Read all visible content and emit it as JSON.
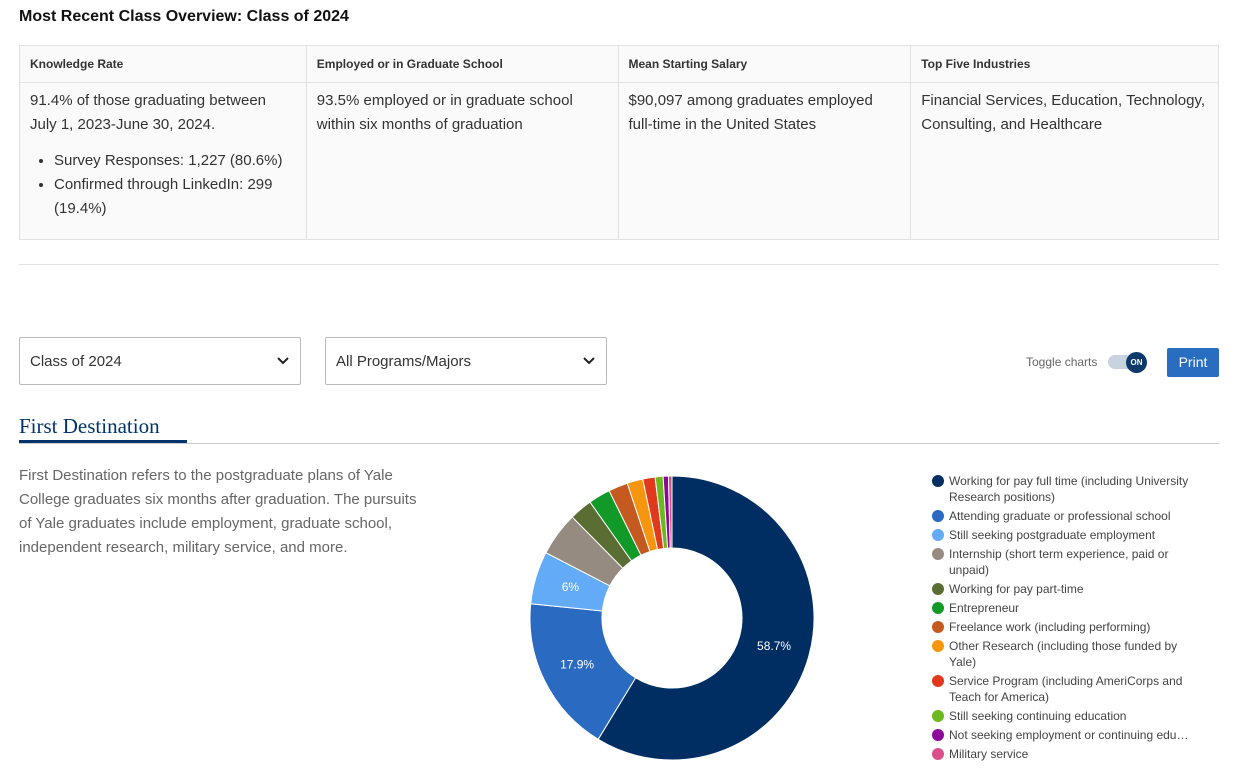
{
  "header": {
    "title": "Most Recent Class Overview: Class of 2024"
  },
  "table": {
    "columns": [
      {
        "header": "Knowledge Rate",
        "text": "91.4% of those graduating between July 1, 2023-June 30, 2024.",
        "bullets": [
          "Survey Responses: 1,227 (80.6%)",
          "Confirmed through LinkedIn: 299 (19.4%)"
        ]
      },
      {
        "header": "Employed or in Graduate School",
        "text": "93.5% employed or in graduate school within six months of graduation"
      },
      {
        "header": "Mean Starting Salary",
        "text": "$90,097 among graduates employed full-time in the United States"
      },
      {
        "header": "Top Five Industries",
        "text": "Financial Services, Education, Technology, Consulting, and Healthcare"
      }
    ]
  },
  "controls": {
    "class_select": "Class of 2024",
    "program_select": "All Programs/Majors",
    "toggle_label": "Toggle charts",
    "toggle_state": "ON",
    "print": "Print"
  },
  "section": {
    "title": "First Destination",
    "description": "First Destination refers to the postgraduate plans of Yale College graduates six months after graduation. The pursuits of Yale graduates include employment, graduate school, independent research, military service, and more."
  },
  "chart_data": {
    "type": "pie",
    "donut": true,
    "categories": [
      "Working for pay full time (including University Research positions)",
      "Attending graduate or professional school",
      "Still seeking postgraduate employment",
      "Internship (short term experience, paid or unpaid)",
      "Working for pay part-time",
      "Entrepreneur",
      "Freelance work (including performing)",
      "Other Research (including those funded by Yale)",
      "Service Program (including AmeriCorps and Teach for America)",
      "Still seeking continuing education",
      "Not seeking employment or continuing edu…",
      "Military service"
    ],
    "values": [
      58.7,
      17.9,
      6,
      5.0,
      2.6,
      2.5,
      2.2,
      1.8,
      1.4,
      0.9,
      0.6,
      0.4
    ],
    "value_labels": [
      "58.7%",
      "17.9%",
      "6%",
      null,
      null,
      null,
      null,
      null,
      null,
      null,
      null,
      null
    ],
    "colors": [
      "#002d62",
      "#2a6ac1",
      "#63aaf7",
      "#968b80",
      "#5a6e33",
      "#129a29",
      "#c45a1f",
      "#f6960f",
      "#e0391d",
      "#6cb81f",
      "#8e079b",
      "#d94f8a"
    ]
  }
}
